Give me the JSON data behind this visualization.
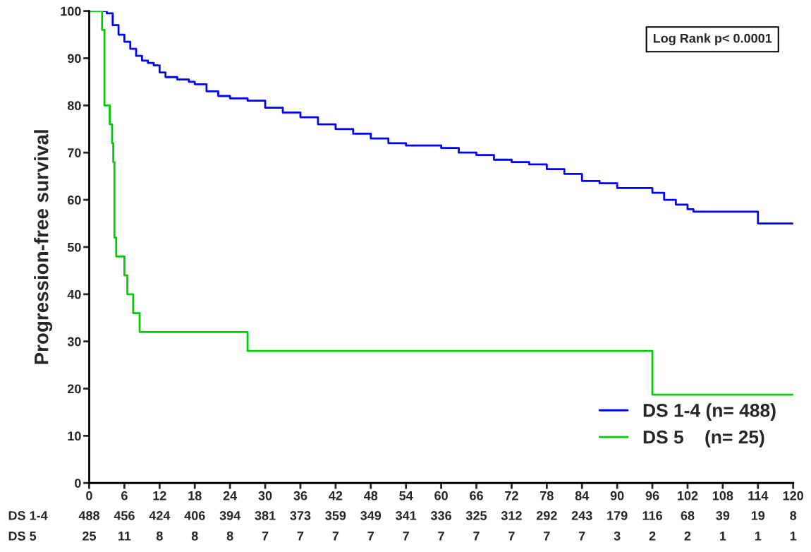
{
  "chart_data": {
    "type": "step",
    "ylabel": "Progression-free survival",
    "xlim": [
      0,
      120
    ],
    "xticks": [
      0,
      6,
      12,
      18,
      24,
      30,
      36,
      42,
      48,
      54,
      60,
      66,
      72,
      78,
      84,
      90,
      96,
      102,
      108,
      114,
      120
    ],
    "ylim": [
      0,
      100
    ],
    "yticks": [
      0,
      10,
      20,
      30,
      40,
      50,
      60,
      70,
      80,
      90,
      100
    ],
    "grid": false,
    "legend": "bottom right",
    "marker": "none",
    "line_style": "solid",
    "series": [
      {
        "name": "DS 1-4 (n= 488)",
        "color": "#0000ff",
        "x": [
          0,
          2.5,
          3,
          4,
          5,
          6,
          7,
          8,
          9,
          10,
          11,
          12,
          13,
          15,
          17,
          18,
          20,
          22,
          24,
          27,
          30,
          33,
          36,
          39,
          42,
          45,
          48,
          51,
          54,
          60,
          63,
          66,
          69,
          72,
          75,
          78,
          81,
          84,
          87,
          90,
          96,
          98,
          100,
          102,
          103,
          114,
          120
        ],
        "values": [
          100,
          100,
          99.5,
          97,
          95,
          93.5,
          92,
          90.5,
          89.5,
          89,
          88.5,
          87,
          86,
          85.5,
          85,
          84.5,
          83,
          82,
          81.5,
          81,
          79.5,
          78.5,
          77.5,
          76,
          75,
          74,
          73,
          72,
          71.5,
          71,
          70,
          69.5,
          68.5,
          68,
          67.5,
          66.5,
          65.5,
          64,
          63.5,
          62.5,
          61.5,
          60,
          59,
          58,
          57.5,
          55,
          55
        ]
      },
      {
        "name": "DS 5    (n= 25)",
        "color": "#00cc00",
        "x": [
          0,
          2.2,
          2.4,
          2.6,
          3.5,
          3.9,
          4.1,
          4.3,
          4.6,
          6,
          6.5,
          7.5,
          8.6,
          27,
          96,
          120
        ],
        "values": [
          100,
          96,
          96,
          80,
          76,
          72,
          68,
          52,
          48,
          44,
          40,
          36,
          32,
          28,
          18.7,
          18.7
        ]
      }
    ],
    "annotations": [
      "Log Rank p< 0.0001",
      "DS 1-4",
      "488",
      "456",
      "424",
      "406",
      "394",
      "381",
      "373",
      "359",
      "349",
      "341",
      "336",
      "325",
      "312",
      "292",
      "243",
      "179",
      "116",
      "68",
      "39",
      "19",
      "8",
      "DS 5",
      "25",
      "11",
      "8",
      "8",
      "8",
      "7",
      "7",
      "7",
      "7",
      "7",
      "7",
      "7",
      "7",
      "7",
      "7",
      "3",
      "2",
      "2",
      "1",
      "1",
      "1"
    ]
  }
}
